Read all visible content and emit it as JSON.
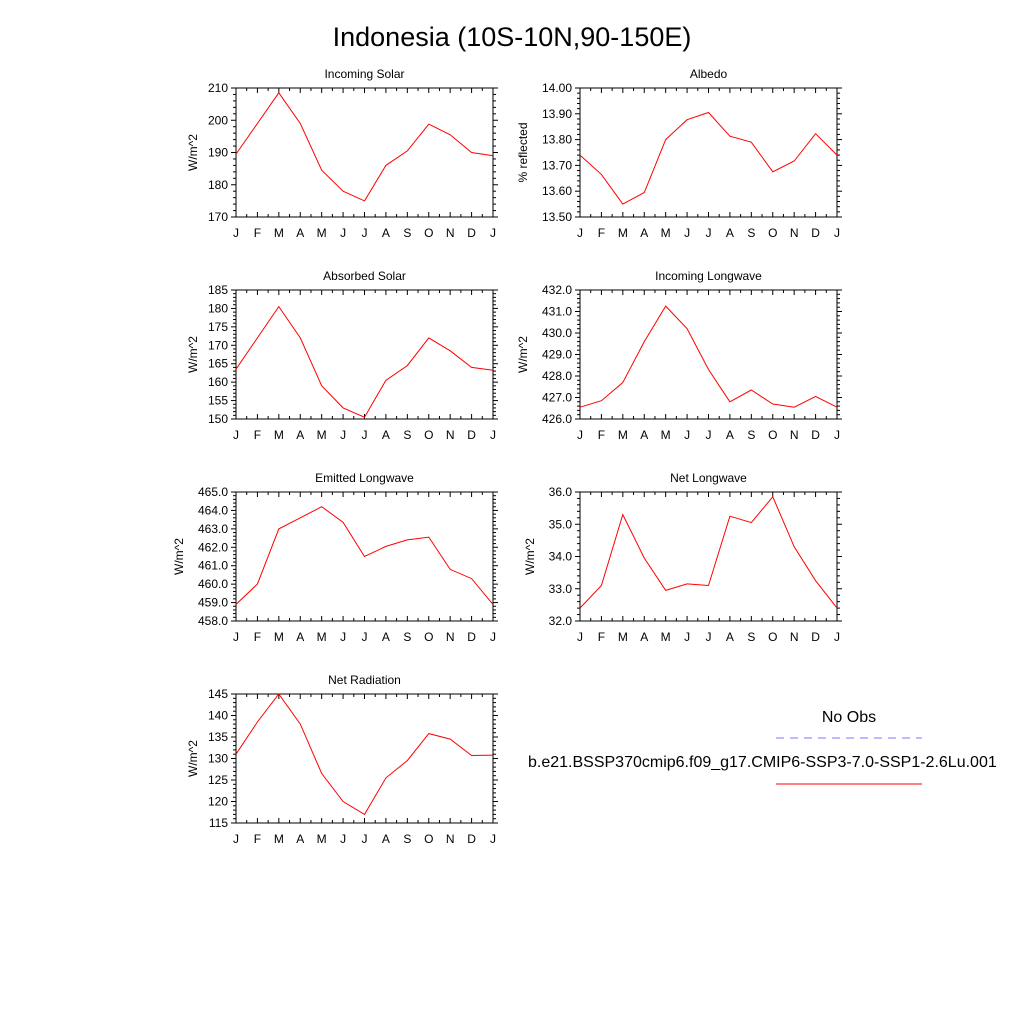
{
  "figure": {
    "title": "Indonesia (10S-10N,90-150E)"
  },
  "legend": {
    "obs_label": "No Obs",
    "obs_color": "#7777ff",
    "model_label": "b.e21.BSSP370cmip6.f09_g17.CMIP6-SSP3-7.0-SSP1-2.6Lu.001",
    "model_color": "#ff0000"
  },
  "chart_data": [
    {
      "type": "line",
      "title": "Incoming Solar",
      "ylabel": "W/m^2",
      "x": [
        "J",
        "F",
        "M",
        "A",
        "M",
        "J",
        "J",
        "A",
        "S",
        "O",
        "N",
        "D",
        "J"
      ],
      "ylim": [
        170,
        210
      ],
      "yticks": [
        "170",
        "180",
        "190",
        "200",
        "210"
      ],
      "series": [
        {
          "values": [
            189.5,
            199.0,
            208.5,
            199.0,
            184.5,
            178.0,
            175.0,
            186.0,
            190.5,
            198.8,
            195.5,
            190.0,
            189.0
          ]
        }
      ]
    },
    {
      "type": "line",
      "title": "Albedo",
      "ylabel": "% reflected",
      "x": [
        "J",
        "F",
        "M",
        "A",
        "M",
        "J",
        "J",
        "A",
        "S",
        "O",
        "N",
        "D",
        "J"
      ],
      "ylim": [
        13.5,
        14.0
      ],
      "yticks": [
        "13.50",
        "13.60",
        "13.70",
        "13.80",
        "13.90",
        "14.00"
      ],
      "series": [
        {
          "values": [
            13.74,
            13.665,
            13.55,
            13.595,
            13.8,
            13.877,
            13.905,
            13.813,
            13.79,
            13.675,
            13.717,
            13.823,
            13.74
          ]
        }
      ]
    },
    {
      "type": "line",
      "title": "Absorbed Solar",
      "ylabel": "W/m^2",
      "x": [
        "J",
        "F",
        "M",
        "A",
        "M",
        "J",
        "J",
        "A",
        "S",
        "O",
        "N",
        "D",
        "J"
      ],
      "ylim": [
        150,
        185
      ],
      "yticks": [
        "150",
        "155",
        "160",
        "165",
        "170",
        "175",
        "180",
        "185"
      ],
      "series": [
        {
          "values": [
            163.5,
            172.0,
            180.5,
            172.0,
            159.0,
            153.0,
            150.5,
            160.5,
            164.5,
            172.0,
            168.5,
            164.0,
            163.2
          ]
        }
      ]
    },
    {
      "type": "line",
      "title": "Incoming Longwave",
      "ylabel": "W/m^2",
      "x": [
        "J",
        "F",
        "M",
        "A",
        "M",
        "J",
        "J",
        "A",
        "S",
        "O",
        "N",
        "D",
        "J"
      ],
      "ylim": [
        426.0,
        432.0
      ],
      "yticks": [
        "426.0",
        "427.0",
        "428.0",
        "429.0",
        "430.0",
        "431.0",
        "432.0"
      ],
      "series": [
        {
          "values": [
            426.55,
            426.85,
            427.7,
            429.6,
            431.25,
            430.2,
            428.3,
            426.8,
            427.35,
            426.7,
            426.55,
            427.05,
            426.55
          ]
        }
      ]
    },
    {
      "type": "line",
      "title": "Emitted Longwave",
      "ylabel": "W/m^2",
      "x": [
        "J",
        "F",
        "M",
        "A",
        "M",
        "J",
        "J",
        "A",
        "S",
        "O",
        "N",
        "D",
        "J"
      ],
      "ylim": [
        458.0,
        465.0
      ],
      "yticks": [
        "458.0",
        "459.0",
        "460.0",
        "461.0",
        "462.0",
        "463.0",
        "464.0",
        "465.0"
      ],
      "series": [
        {
          "values": [
            458.9,
            460.0,
            463.0,
            463.6,
            464.2,
            463.35,
            461.5,
            462.05,
            462.4,
            462.55,
            460.8,
            460.3,
            458.9
          ]
        }
      ]
    },
    {
      "type": "line",
      "title": "Net Longwave",
      "ylabel": "W/m^2",
      "x": [
        "J",
        "F",
        "M",
        "A",
        "M",
        "J",
        "J",
        "A",
        "S",
        "O",
        "N",
        "D",
        "J"
      ],
      "ylim": [
        32.0,
        36.0
      ],
      "yticks": [
        "32.0",
        "33.0",
        "34.0",
        "35.0",
        "36.0"
      ],
      "series": [
        {
          "values": [
            32.4,
            33.1,
            35.3,
            33.95,
            32.95,
            33.15,
            33.1,
            35.25,
            35.05,
            35.85,
            34.3,
            33.25,
            32.4
          ]
        }
      ]
    },
    {
      "type": "line",
      "title": "Net Radiation",
      "ylabel": "W/m^2",
      "x": [
        "J",
        "F",
        "M",
        "A",
        "M",
        "J",
        "J",
        "A",
        "S",
        "O",
        "N",
        "D",
        "J"
      ],
      "ylim": [
        115,
        145
      ],
      "yticks": [
        "115",
        "120",
        "125",
        "130",
        "135",
        "140",
        "145"
      ],
      "series": [
        {
          "values": [
            131.0,
            138.5,
            145.0,
            138.0,
            126.5,
            120.0,
            117.0,
            125.5,
            129.5,
            135.8,
            134.5,
            130.7,
            130.8
          ]
        }
      ]
    }
  ]
}
